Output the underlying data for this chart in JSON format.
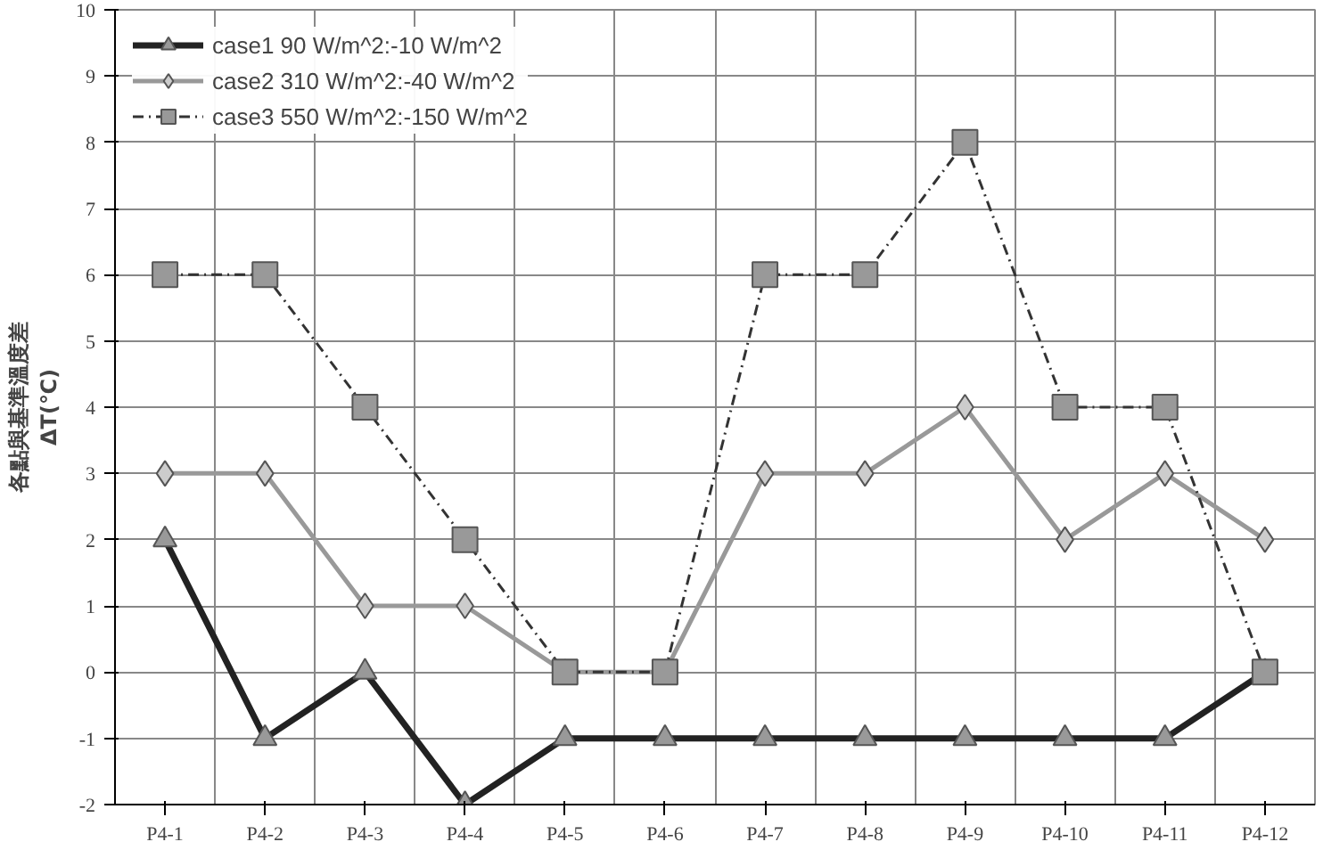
{
  "chart_data": {
    "type": "line",
    "ylabel": "各點與基準溫度差\nΔT(℃)",
    "categories": [
      "P4-1",
      "P4-2",
      "P4-3",
      "P4-4",
      "P4-5",
      "P4-6",
      "P4-7",
      "P4-8",
      "P4-9",
      "P4-10",
      "P4-11",
      "P4-12"
    ],
    "ylim": [
      -2,
      10
    ],
    "yticks": [
      -2,
      -1,
      0,
      1,
      2,
      3,
      4,
      5,
      6,
      7,
      8,
      9,
      10
    ],
    "grid": true,
    "legend": "top left",
    "series": [
      {
        "name": "case1 90 W/m^2:-10 W/m^2",
        "color": "#222222",
        "marker": "triangle",
        "line_style": "solid",
        "values": [
          2,
          -1,
          0,
          -2,
          -1,
          -1,
          -1,
          -1,
          -1,
          -1,
          -1,
          0
        ]
      },
      {
        "name": "case2 310 W/m^2:-40 W/m^2",
        "color": "#999999",
        "marker": "diamond",
        "line_style": "solid",
        "values": [
          3,
          3,
          1,
          1,
          0,
          0,
          3,
          3,
          4,
          2,
          3,
          2
        ]
      },
      {
        "name": "case3 550 W/m^2:-150 W/m^2",
        "color": "#333333",
        "marker": "square",
        "line_style": "dashed",
        "values": [
          6,
          6,
          4,
          2,
          0,
          0,
          6,
          6,
          8,
          4,
          4,
          0
        ]
      }
    ]
  }
}
